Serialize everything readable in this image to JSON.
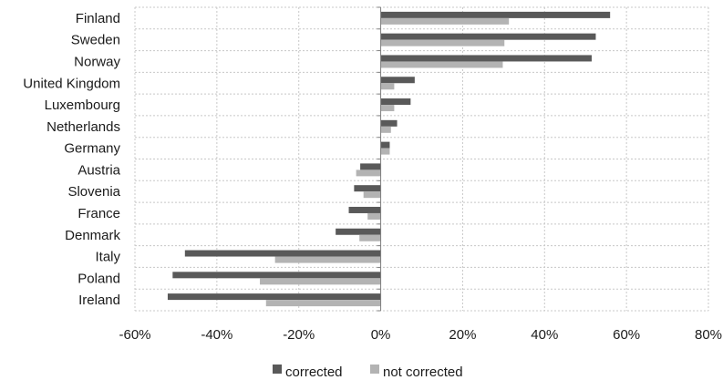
{
  "chart_data": {
    "type": "bar",
    "orientation": "horizontal",
    "categories": [
      "Finland",
      "Sweden",
      "Norway",
      "United Kingdom",
      "Luxembourg",
      "Netherlands",
      "Germany",
      "Austria",
      "Slovenia",
      "France",
      "Denmark",
      "Italy",
      "Poland",
      "Ireland"
    ],
    "series": [
      {
        "name": "corrected",
        "color": "#595959",
        "values": [
          0.56,
          0.525,
          0.515,
          0.083,
          0.073,
          0.04,
          0.022,
          -0.05,
          -0.065,
          -0.078,
          -0.11,
          -0.478,
          -0.508,
          -0.52
        ]
      },
      {
        "name": "not corrected",
        "color": "#b3b3b3",
        "values": [
          0.313,
          0.302,
          0.298,
          0.033,
          0.033,
          0.025,
          0.022,
          -0.06,
          -0.042,
          -0.032,
          -0.052,
          -0.258,
          -0.295,
          -0.28
        ]
      }
    ],
    "xlim": [
      -0.6,
      0.8
    ],
    "xticks": [
      "-60%",
      "-40%",
      "-20%",
      "0%",
      "20%",
      "40%",
      "60%",
      "80%"
    ],
    "xtick_values": [
      -0.6,
      -0.4,
      -0.2,
      0,
      0.2,
      0.4,
      0.6,
      0.8
    ],
    "grid": true,
    "legend_position": "bottom"
  }
}
